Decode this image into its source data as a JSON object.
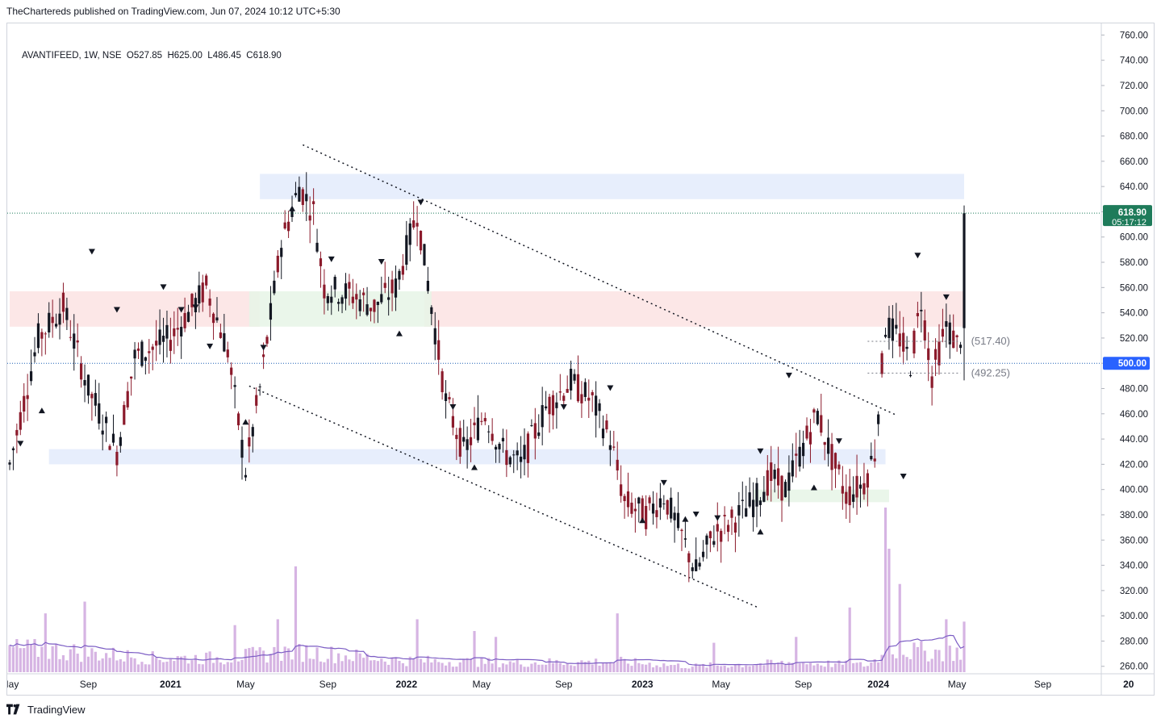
{
  "header": {
    "publisher_line": "TheChartereds published on TradingView.com, Jun 07, 2024 10:12 UTC+5:30"
  },
  "legend": {
    "symbol_line": "AVANTIFEED, 1W, NSE  O527.85  H625.00  L486.45  C618.90"
  },
  "footer": {
    "brand": "TradingView"
  },
  "colors": {
    "up": "#131722",
    "down": "#8b1a2b",
    "volume": "#d6b4e3",
    "volume_ma": "#7b5cc4",
    "resistance_zone": "#fbe3e3",
    "support_zone": "#e3ebfb",
    "green_zone": "#e6f4e6",
    "price_line": "#1e7b5a",
    "dotted_line": "#1a5fb4",
    "blue_label": "#2962ff"
  },
  "chart_data": {
    "type": "candlestick",
    "symbol": "AVANTIFEED",
    "interval": "1W",
    "exchange": "NSE",
    "last_bar": {
      "open": 527.85,
      "high": 625.0,
      "low": 486.45,
      "close": 618.9
    },
    "ylim": [
      256,
      766
    ],
    "y_ticks": [
      "760.00",
      "740.00",
      "720.00",
      "700.00",
      "680.00",
      "660.00",
      "640.00",
      "620.00",
      "600.00",
      "580.00",
      "560.00",
      "540.00",
      "520.00",
      "500.00",
      "480.00",
      "460.00",
      "440.00",
      "420.00",
      "400.00",
      "380.00",
      "360.00",
      "340.00",
      "320.00",
      "300.00",
      "280.00",
      "260.00"
    ],
    "x_ticks": [
      "May",
      "Sep",
      "2021",
      "May",
      "Sep",
      "2022",
      "May",
      "Sep",
      "2023",
      "May",
      "Sep",
      "2024",
      "May",
      "Sep",
      "20"
    ],
    "price_label": {
      "value": "618.90",
      "countdown": "05:17:12"
    },
    "hline_label": {
      "value": "500.00"
    },
    "annotations": [
      "(517.40)",
      "(492.25)"
    ],
    "anchors": [
      {
        "i": 0,
        "p": 420
      },
      {
        "i": 8,
        "p": 520
      },
      {
        "i": 15,
        "p": 545
      },
      {
        "i": 22,
        "p": 480
      },
      {
        "i": 30,
        "p": 430
      },
      {
        "i": 35,
        "p": 505
      },
      {
        "i": 45,
        "p": 520
      },
      {
        "i": 55,
        "p": 560
      },
      {
        "i": 61,
        "p": 510
      },
      {
        "i": 66,
        "p": 415
      },
      {
        "i": 70,
        "p": 480
      },
      {
        "i": 76,
        "p": 595
      },
      {
        "i": 81,
        "p": 640
      },
      {
        "i": 85,
        "p": 620
      },
      {
        "i": 88,
        "p": 560
      },
      {
        "i": 95,
        "p": 555
      },
      {
        "i": 102,
        "p": 545
      },
      {
        "i": 108,
        "p": 560
      },
      {
        "i": 114,
        "p": 620
      },
      {
        "i": 118,
        "p": 545
      },
      {
        "i": 122,
        "p": 470
      },
      {
        "i": 127,
        "p": 430
      },
      {
        "i": 133,
        "p": 460
      },
      {
        "i": 138,
        "p": 430
      },
      {
        "i": 143,
        "p": 420
      },
      {
        "i": 150,
        "p": 465
      },
      {
        "i": 157,
        "p": 485
      },
      {
        "i": 163,
        "p": 470
      },
      {
        "i": 168,
        "p": 440
      },
      {
        "i": 172,
        "p": 390
      },
      {
        "i": 178,
        "p": 380
      },
      {
        "i": 183,
        "p": 395
      },
      {
        "i": 187,
        "p": 370
      },
      {
        "i": 192,
        "p": 335
      },
      {
        "i": 197,
        "p": 365
      },
      {
        "i": 202,
        "p": 375
      },
      {
        "i": 208,
        "p": 390
      },
      {
        "i": 213,
        "p": 410
      },
      {
        "i": 217,
        "p": 400
      },
      {
        "i": 222,
        "p": 435
      },
      {
        "i": 226,
        "p": 460
      },
      {
        "i": 230,
        "p": 425
      },
      {
        "i": 234,
        "p": 395
      },
      {
        "i": 239,
        "p": 405
      },
      {
        "i": 242,
        "p": 430
      },
      {
        "i": 245,
        "p": 530
      },
      {
        "i": 249,
        "p": 520
      },
      {
        "i": 252,
        "p": 500
      },
      {
        "i": 255,
        "p": 550
      },
      {
        "i": 258,
        "p": 490
      },
      {
        "i": 262,
        "p": 530
      },
      {
        "i": 265,
        "p": 515
      },
      {
        "i": 267,
        "p": 527.85
      }
    ],
    "volume": {
      "scale_max": 9,
      "anchors": [
        {
          "i": 0,
          "v": 2.0
        },
        {
          "i": 15,
          "v": 1.8
        },
        {
          "i": 40,
          "v": 1.2
        },
        {
          "i": 60,
          "v": 1.2
        },
        {
          "i": 80,
          "v": 1.8
        },
        {
          "i": 110,
          "v": 1.0
        },
        {
          "i": 140,
          "v": 0.8
        },
        {
          "i": 170,
          "v": 0.9
        },
        {
          "i": 190,
          "v": 0.5
        },
        {
          "i": 220,
          "v": 0.8
        },
        {
          "i": 240,
          "v": 0.6
        },
        {
          "i": 246,
          "v": 1.8
        },
        {
          "i": 267,
          "v": 1.7
        }
      ],
      "spikes": [
        {
          "i": 10,
          "v": 5
        },
        {
          "i": 21,
          "v": 6
        },
        {
          "i": 63,
          "v": 4
        },
        {
          "i": 75,
          "v": 4.5
        },
        {
          "i": 80,
          "v": 9
        },
        {
          "i": 114,
          "v": 4.5
        },
        {
          "i": 130,
          "v": 3.5
        },
        {
          "i": 136,
          "v": 3.0
        },
        {
          "i": 170,
          "v": 5
        },
        {
          "i": 197,
          "v": 2.5
        },
        {
          "i": 220,
          "v": 3
        },
        {
          "i": 235,
          "v": 5.5
        },
        {
          "i": 245,
          "v": 14
        },
        {
          "i": 246,
          "v": 10.5
        },
        {
          "i": 249,
          "v": 7.5
        },
        {
          "i": 262,
          "v": 4.5
        },
        {
          "i": 267,
          "v": 4.3
        }
      ]
    }
  }
}
